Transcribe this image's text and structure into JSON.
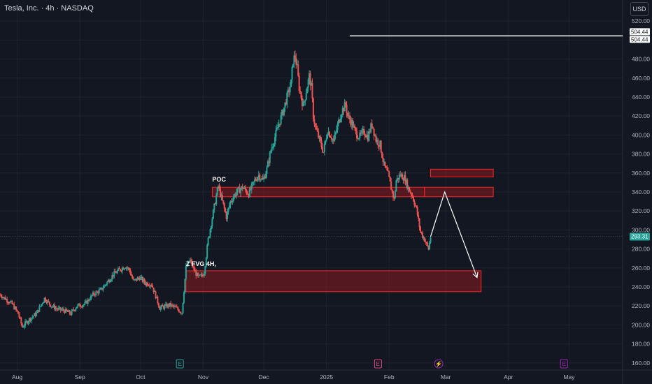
{
  "header": {
    "title": "Tesla, Inc. · 4h · NASDAQ",
    "currency_button": "USD"
  },
  "colors": {
    "background": "#131722",
    "bull": "#26a69a",
    "bear": "#ef5350",
    "zone_fill": "#8b1a1f",
    "zone_border": "#ff2020",
    "current_price_bg": "#26a69a",
    "axis_text": "#b2b5be",
    "event_earnings": "#26a69a",
    "event_dividend": "#e0457b",
    "event_split": "#9c27b0"
  },
  "chart_data": {
    "type": "candlestick",
    "title": "Tesla, Inc. · 4h · NASDAQ",
    "currency": "USD",
    "ylim": [
      154,
      526
    ],
    "y_ticks": [
      160,
      180,
      200,
      220,
      240,
      260,
      280,
      300,
      320,
      340,
      360,
      380,
      400,
      420,
      440,
      460,
      480,
      500,
      520
    ],
    "x_ticks": [
      {
        "label": "Aug",
        "pos": 0.5
      },
      {
        "label": "Sep",
        "pos": 31.5
      },
      {
        "label": "Oct",
        "pos": 61.5
      },
      {
        "label": "Nov",
        "pos": 92.5
      },
      {
        "label": "Dec",
        "pos": 122.5
      },
      {
        "label": "2025",
        "pos": 153.5
      },
      {
        "label": "Feb",
        "pos": 184.5
      },
      {
        "label": "Mar",
        "pos": 212.5
      },
      {
        "label": "Apr",
        "pos": 243.5
      },
      {
        "label": "May",
        "pos": 273.5
      }
    ],
    "x_range_days": [
      -8,
      300
    ],
    "price_path": [
      [
        -8,
        232
      ],
      [
        -5,
        227
      ],
      [
        -2,
        222
      ],
      [
        1,
        212
      ],
      [
        3,
        198
      ],
      [
        6,
        205
      ],
      [
        10,
        212
      ],
      [
        14,
        228
      ],
      [
        17,
        221
      ],
      [
        20,
        217
      ],
      [
        24,
        215
      ],
      [
        27,
        212
      ],
      [
        30,
        220
      ],
      [
        34,
        222
      ],
      [
        38,
        232
      ],
      [
        42,
        237
      ],
      [
        45,
        245
      ],
      [
        48,
        253
      ],
      [
        51,
        258
      ],
      [
        54,
        262
      ],
      [
        56,
        258
      ],
      [
        58,
        246
      ],
      [
        61,
        250
      ],
      [
        64,
        244
      ],
      [
        67,
        243
      ],
      [
        71,
        218
      ],
      [
        76,
        221
      ],
      [
        79,
        218
      ],
      [
        82,
        213
      ],
      [
        84,
        260
      ],
      [
        86,
        268
      ],
      [
        88,
        258
      ],
      [
        90,
        250
      ],
      [
        92,
        252
      ],
      [
        93,
        256
      ],
      [
        95,
        290
      ],
      [
        97,
        313
      ],
      [
        99,
        336
      ],
      [
        100,
        346
      ],
      [
        102,
        330
      ],
      [
        104,
        314
      ],
      [
        106,
        330
      ],
      [
        109,
        340
      ],
      [
        112,
        345
      ],
      [
        115,
        338
      ],
      [
        118,
        352
      ],
      [
        120,
        358
      ],
      [
        122,
        352
      ],
      [
        124,
        364
      ],
      [
        126,
        384
      ],
      [
        128,
        398
      ],
      [
        130,
        412
      ],
      [
        132,
        425
      ],
      [
        134,
        440
      ],
      [
        136,
        455
      ],
      [
        137,
        479
      ],
      [
        138,
        483
      ],
      [
        139,
        470
      ],
      [
        140,
        450
      ],
      [
        142,
        430
      ],
      [
        144,
        452
      ],
      [
        145,
        462
      ],
      [
        146,
        450
      ],
      [
        147,
        420
      ],
      [
        148,
        408
      ],
      [
        150,
        395
      ],
      [
        152,
        382
      ],
      [
        154,
        405
      ],
      [
        156,
        398
      ],
      [
        157,
        393
      ],
      [
        159,
        410
      ],
      [
        161,
        425
      ],
      [
        163,
        432
      ],
      [
        164,
        420
      ],
      [
        166,
        413
      ],
      [
        168,
        402
      ],
      [
        170,
        398
      ],
      [
        172,
        404
      ],
      [
        174,
        398
      ],
      [
        176,
        412
      ],
      [
        178,
        395
      ],
      [
        180,
        390
      ],
      [
        182,
        368
      ],
      [
        184,
        358
      ],
      [
        186,
        340
      ],
      [
        187,
        332
      ],
      [
        188,
        352
      ],
      [
        190,
        358
      ],
      [
        192,
        355
      ],
      [
        194,
        344
      ],
      [
        196,
        336
      ],
      [
        198,
        322
      ],
      [
        200,
        298
      ],
      [
        202,
        290
      ],
      [
        204,
        280
      ],
      [
        205,
        293
      ]
    ],
    "current_price": {
      "label": "293.31",
      "value": 293.31
    },
    "levels": [
      {
        "name": "resistance-line",
        "value": 504.44,
        "label": "504.44",
        "x_start": 165
      }
    ],
    "price_labels": [
      "504.44",
      "504.44"
    ],
    "zones": [
      {
        "name": "zone-poc",
        "x_start": 97,
        "x_end": 202,
        "y_low": 335,
        "y_high": 345
      },
      {
        "name": "zone-poc-right",
        "x_start": 202,
        "x_end": 236,
        "y_low": 335,
        "y_high": 345
      },
      {
        "name": "zone-upper-right",
        "x_start": 205,
        "x_end": 236,
        "y_low": 356,
        "y_high": 364
      },
      {
        "name": "zone-fvg-4h",
        "x_start": 84,
        "x_end": 230,
        "y_low": 235,
        "y_high": 257
      }
    ],
    "annotations": [
      {
        "name": "poc-label",
        "text": "POC",
        "x": 97,
        "y": 351
      },
      {
        "name": "fvg-label",
        "text": "Z FVG 4H,",
        "x": 84,
        "y": 262
      }
    ],
    "projection": [
      [
        205,
        293
      ],
      [
        212,
        340
      ],
      [
        228,
        250
      ]
    ],
    "events": [
      {
        "type": "earnings",
        "glyph": "E",
        "x": 81
      },
      {
        "type": "dividend",
        "glyph": "E",
        "x": 179
      },
      {
        "type": "split",
        "glyph": "⚡",
        "x": 209
      },
      {
        "type": "split",
        "glyph": "E",
        "x": 271
      }
    ]
  }
}
